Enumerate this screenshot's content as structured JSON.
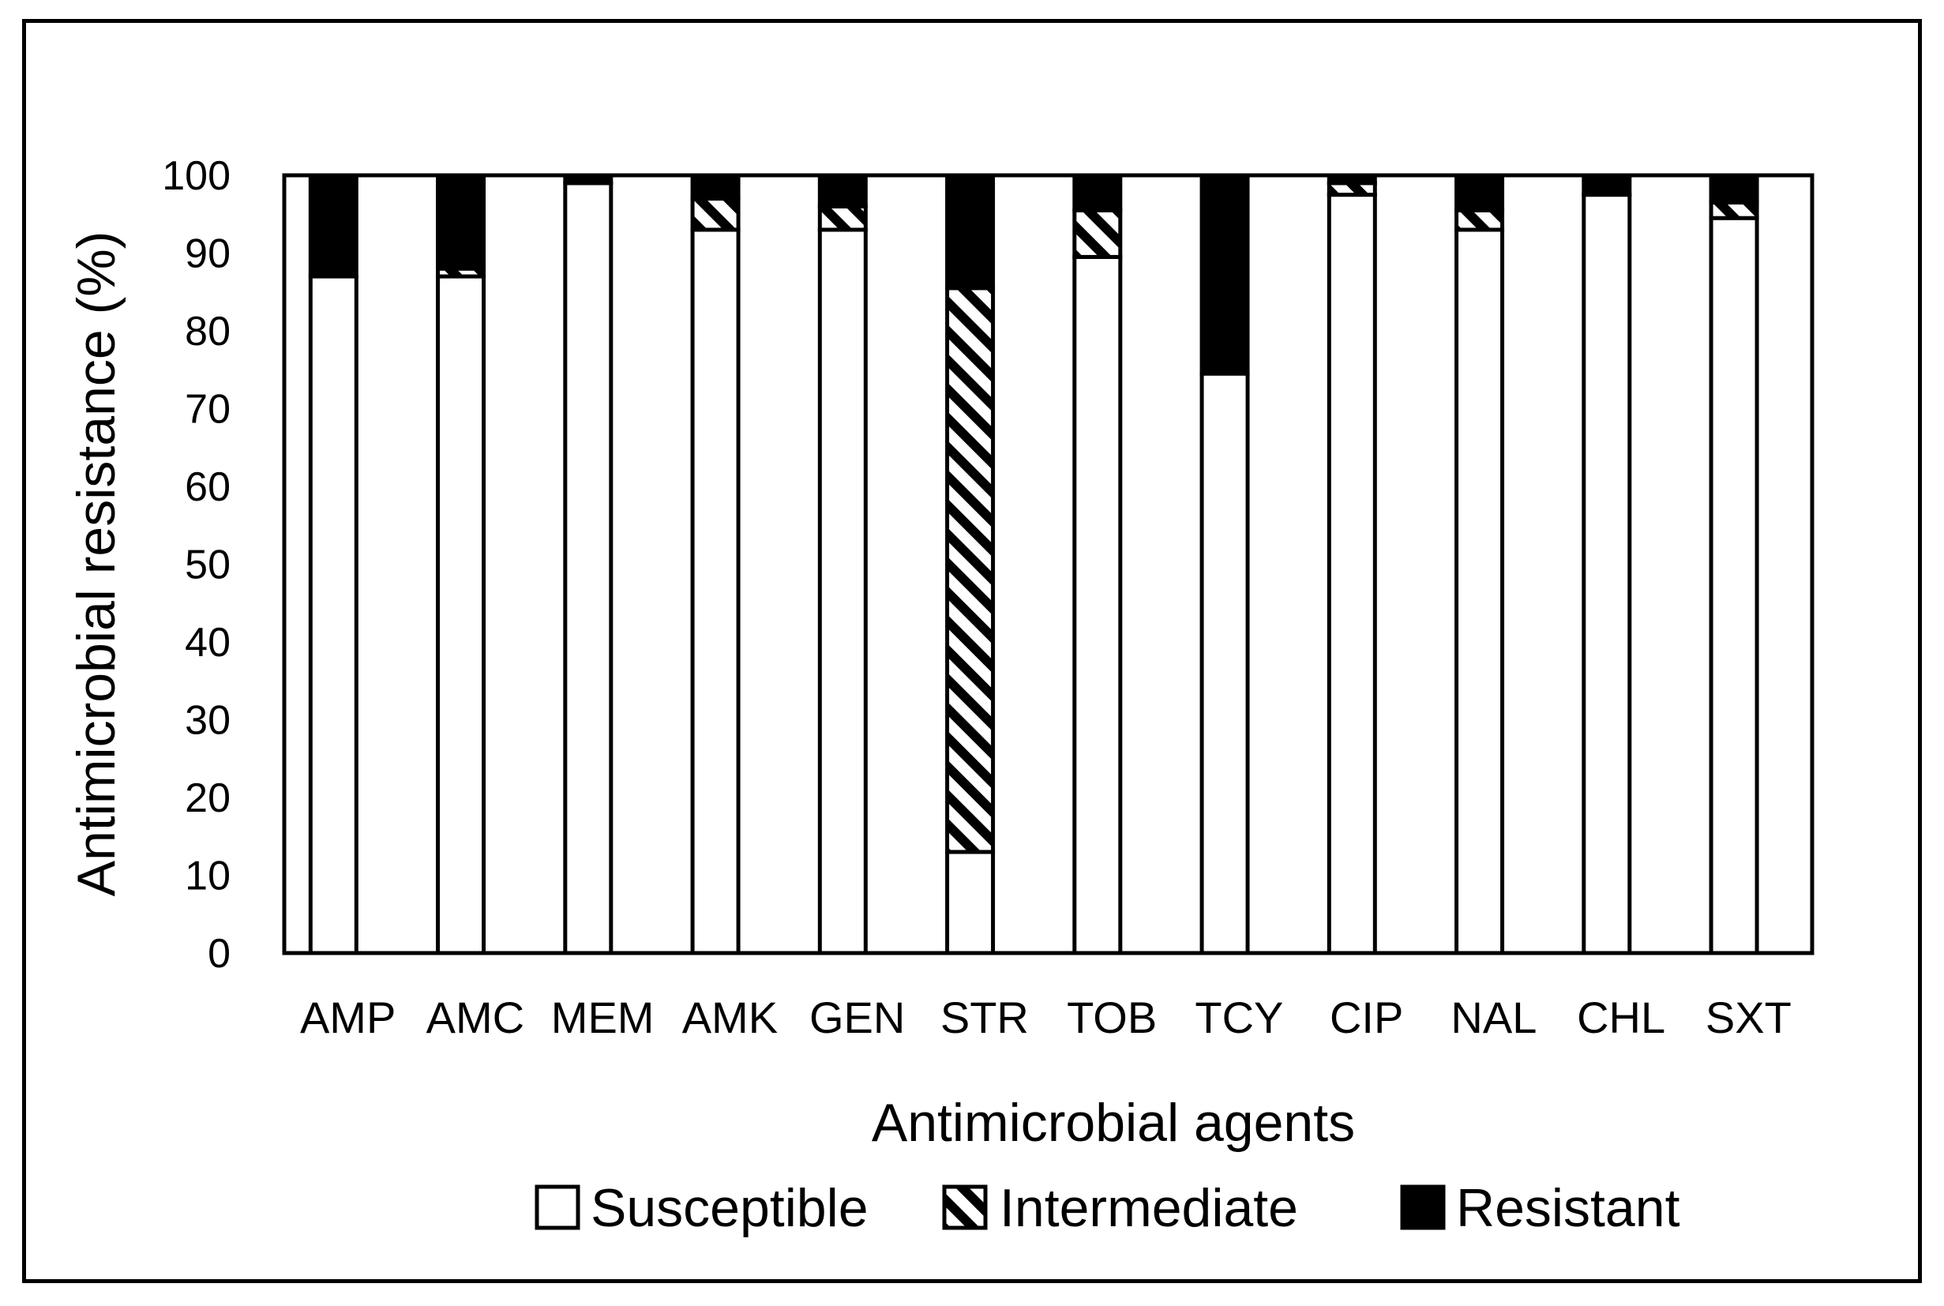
{
  "chart_data": {
    "type": "bar",
    "stacked": true,
    "title": "",
    "xlabel": "Antimicrobial agents",
    "ylabel": "Antimicrobial resistance (%)",
    "ylim": [
      0,
      100
    ],
    "yticks": [
      0,
      10,
      20,
      30,
      40,
      50,
      60,
      70,
      80,
      90,
      100
    ],
    "categories": [
      "AMP",
      "AMC",
      "MEM",
      "AMK",
      "GEN",
      "STR",
      "TOB",
      "TCY",
      "CIP",
      "NAL",
      "CHL",
      "SXT"
    ],
    "series": [
      {
        "name": "Susceptible",
        "pattern": "solid-white",
        "values": [
          87,
          87,
          99,
          93,
          93,
          13,
          89.5,
          74.5,
          97.5,
          93,
          97.5,
          94.5
        ]
      },
      {
        "name": "Intermediate",
        "pattern": "diagonal-hatch",
        "values": [
          0,
          1,
          0,
          4,
          3,
          72.5,
          6,
          0,
          1.5,
          2.5,
          0,
          2
        ]
      },
      {
        "name": "Resistant",
        "pattern": "solid-black",
        "values": [
          13,
          12,
          1,
          3,
          4,
          14.5,
          4.5,
          25.5,
          1,
          4.5,
          2.5,
          3.5
        ]
      }
    ],
    "legend_position": "bottom",
    "grid": false,
    "colors": {
      "susceptible": "#ffffff",
      "resistant": "#000000",
      "outline": "#000000"
    }
  }
}
